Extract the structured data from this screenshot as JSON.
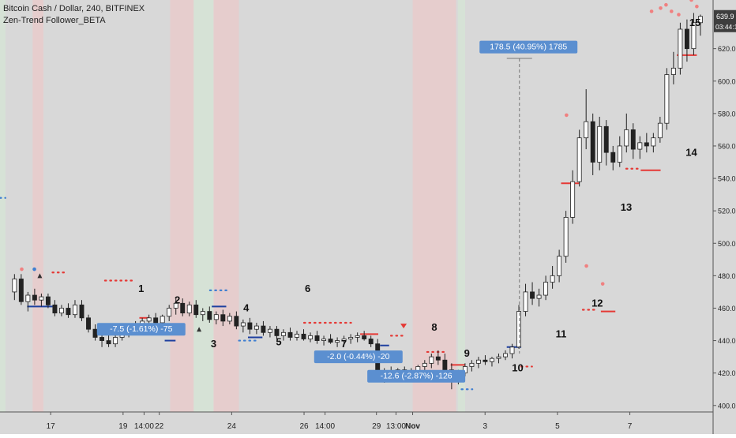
{
  "header": {
    "symbol_line": "Bitcoin Cash / Dollar, 240, BITFINEX",
    "indicator_line": "Zen-Trend Follower_BETA"
  },
  "price_axis": {
    "last_price": "639.9",
    "countdown": "03:44:1",
    "last_price_color": "#3d3d3d"
  },
  "colors": {
    "bull_candle": "#ffffff",
    "bear_candle": "#222222",
    "up_band": "#d6e3d6",
    "down_band": "#e8cccc",
    "red_level": "#e53935",
    "blue_level": "#1e40a0",
    "blue_dots": "#3f7fd1",
    "red_dots": "#e53935",
    "measure_label_bg": "#5b8fd0"
  },
  "annotations": [
    {
      "label": "1",
      "x": 19.5,
      "y": 470
    },
    {
      "label": "2",
      "x": 20.5,
      "y": 463
    },
    {
      "label": "3",
      "x": 21.5,
      "y": 436
    },
    {
      "label": "4",
      "x": 22.4,
      "y": 458
    },
    {
      "label": "5",
      "x": 23.3,
      "y": 437
    },
    {
      "label": "6",
      "x": 24.1,
      "y": 470
    },
    {
      "label": "7",
      "x": 25.1,
      "y": 436
    },
    {
      "label": "8",
      "x": 27.6,
      "y": 446
    },
    {
      "label": "9",
      "x": 28.5,
      "y": 430
    },
    {
      "label": "10",
      "x": 29.9,
      "y": 421
    },
    {
      "label": "11",
      "x": 31.1,
      "y": 442
    },
    {
      "label": "12",
      "x": 32.1,
      "y": 461
    },
    {
      "label": "13",
      "x": 32.9,
      "y": 520
    },
    {
      "label": "14",
      "x": 34.7,
      "y": 554
    },
    {
      "label": "15",
      "x": 34.8,
      "y": 634
    }
  ],
  "measurements": [
    {
      "label": "-7.5 (-1.61%) -75",
      "x": 19.5,
      "y": 447
    },
    {
      "label": "-2.0 (-0.44%) -20",
      "x": 25.5,
      "y": 430
    },
    {
      "label": "-12.6 (-2.87%) -126",
      "x": 27.1,
      "y": 418
    },
    {
      "label": "178.5 (40.95%) 1785",
      "x": 30.2,
      "y": 621
    }
  ],
  "chart_data": {
    "type": "candlestick",
    "title": "Bitcoin Cash / Dollar, 240, BITFINEX",
    "subtitle": "Zen-Trend Follower_BETA",
    "x_tick_labels": [
      {
        "label": "17",
        "x": 17.0
      },
      {
        "label": "19",
        "x": 19.0
      },
      {
        "label": "14:00",
        "x": 19.58
      },
      {
        "label": "22",
        "x": 20.0
      },
      {
        "label": "24",
        "x": 22.0
      },
      {
        "label": "26",
        "x": 24.0
      },
      {
        "label": "14:00",
        "x": 24.58
      },
      {
        "label": "29",
        "x": 26.0
      },
      {
        "label": "13:00",
        "x": 26.54
      },
      {
        "label": "Nov",
        "x": 27.0
      },
      {
        "label": "3",
        "x": 29.0
      },
      {
        "label": "5",
        "x": 31.0
      },
      {
        "label": "7",
        "x": 33.0
      }
    ],
    "x_range": [
      15.6,
      35.3
    ],
    "y_ticks": [
      400.0,
      420.0,
      440.0,
      460.0,
      480.0,
      500.0,
      520.0,
      540.0,
      560.0,
      580.0,
      600.0,
      620.0
    ],
    "ylim": [
      396,
      650
    ],
    "grid": false,
    "bands": [
      {
        "from": 15.6,
        "to": 15.75,
        "trend": "up"
      },
      {
        "from": 16.5,
        "to": 16.8,
        "trend": "down"
      },
      {
        "from": 20.3,
        "to": 20.95,
        "trend": "down"
      },
      {
        "from": 20.95,
        "to": 21.5,
        "trend": "up"
      },
      {
        "from": 21.5,
        "to": 22.2,
        "trend": "down"
      },
      {
        "from": 27.0,
        "to": 28.2,
        "trend": "down"
      },
      {
        "from": 28.25,
        "to": 28.45,
        "trend": "up"
      }
    ],
    "candles": [
      {
        "o": 470,
        "h": 481,
        "l": 465,
        "c": 478
      },
      {
        "o": 478,
        "h": 481,
        "l": 462,
        "c": 464
      },
      {
        "o": 464,
        "h": 470,
        "l": 458,
        "c": 468
      },
      {
        "o": 468,
        "h": 472,
        "l": 462,
        "c": 465
      },
      {
        "o": 465,
        "h": 469,
        "l": 461,
        "c": 467
      },
      {
        "o": 467,
        "h": 469,
        "l": 460,
        "c": 462
      },
      {
        "o": 462,
        "h": 465,
        "l": 455,
        "c": 457
      },
      {
        "o": 457,
        "h": 462,
        "l": 455,
        "c": 460
      },
      {
        "o": 460,
        "h": 463,
        "l": 454,
        "c": 456
      },
      {
        "o": 456,
        "h": 465,
        "l": 454,
        "c": 462
      },
      {
        "o": 462,
        "h": 465,
        "l": 452,
        "c": 454
      },
      {
        "o": 454,
        "h": 456,
        "l": 445,
        "c": 447
      },
      {
        "o": 447,
        "h": 450,
        "l": 440,
        "c": 442
      },
      {
        "o": 442,
        "h": 446,
        "l": 436,
        "c": 440
      },
      {
        "o": 440,
        "h": 444,
        "l": 436,
        "c": 438
      },
      {
        "o": 438,
        "h": 444,
        "l": 436,
        "c": 442
      },
      {
        "o": 442,
        "h": 448,
        "l": 440,
        "c": 445
      },
      {
        "o": 445,
        "h": 450,
        "l": 442,
        "c": 447
      },
      {
        "o": 447,
        "h": 452,
        "l": 445,
        "c": 450
      },
      {
        "o": 450,
        "h": 454,
        "l": 448,
        "c": 452
      },
      {
        "o": 452,
        "h": 456,
        "l": 450,
        "c": 454
      },
      {
        "o": 454,
        "h": 457,
        "l": 450,
        "c": 451
      },
      {
        "o": 451,
        "h": 456,
        "l": 450,
        "c": 455
      },
      {
        "o": 455,
        "h": 462,
        "l": 452,
        "c": 460
      },
      {
        "o": 460,
        "h": 466,
        "l": 456,
        "c": 463
      },
      {
        "o": 463,
        "h": 466,
        "l": 455,
        "c": 457
      },
      {
        "o": 457,
        "h": 464,
        "l": 455,
        "c": 462
      },
      {
        "o": 462,
        "h": 465,
        "l": 454,
        "c": 456
      },
      {
        "o": 456,
        "h": 460,
        "l": 452,
        "c": 458
      },
      {
        "o": 458,
        "h": 461,
        "l": 451,
        "c": 453
      },
      {
        "o": 453,
        "h": 458,
        "l": 450,
        "c": 456
      },
      {
        "o": 456,
        "h": 459,
        "l": 449,
        "c": 452
      },
      {
        "o": 452,
        "h": 457,
        "l": 450,
        "c": 455
      },
      {
        "o": 455,
        "h": 458,
        "l": 447,
        "c": 449
      },
      {
        "o": 449,
        "h": 453,
        "l": 445,
        "c": 451
      },
      {
        "o": 451,
        "h": 454,
        "l": 444,
        "c": 447
      },
      {
        "o": 447,
        "h": 451,
        "l": 444,
        "c": 449
      },
      {
        "o": 449,
        "h": 452,
        "l": 443,
        "c": 445
      },
      {
        "o": 445,
        "h": 449,
        "l": 442,
        "c": 447
      },
      {
        "o": 447,
        "h": 449,
        "l": 441,
        "c": 443
      },
      {
        "o": 443,
        "h": 447,
        "l": 440,
        "c": 445
      },
      {
        "o": 445,
        "h": 448,
        "l": 440,
        "c": 442
      },
      {
        "o": 442,
        "h": 446,
        "l": 440,
        "c": 444
      },
      {
        "o": 444,
        "h": 447,
        "l": 440,
        "c": 441
      },
      {
        "o": 441,
        "h": 445,
        "l": 439,
        "c": 443
      },
      {
        "o": 443,
        "h": 446,
        "l": 438,
        "c": 440
      },
      {
        "o": 440,
        "h": 443,
        "l": 437,
        "c": 441
      },
      {
        "o": 441,
        "h": 444,
        "l": 438,
        "c": 439
      },
      {
        "o": 439,
        "h": 442,
        "l": 436,
        "c": 440
      },
      {
        "o": 440,
        "h": 443,
        "l": 437,
        "c": 441
      },
      {
        "o": 441,
        "h": 444,
        "l": 438,
        "c": 442
      },
      {
        "o": 442,
        "h": 445,
        "l": 439,
        "c": 443
      },
      {
        "o": 443,
        "h": 446,
        "l": 440,
        "c": 441
      },
      {
        "o": 441,
        "h": 443,
        "l": 436,
        "c": 438
      },
      {
        "o": 438,
        "h": 441,
        "l": 416,
        "c": 419
      },
      {
        "o": 419,
        "h": 423,
        "l": 414,
        "c": 421
      },
      {
        "o": 421,
        "h": 424,
        "l": 418,
        "c": 420
      },
      {
        "o": 420,
        "h": 423,
        "l": 418,
        "c": 422
      },
      {
        "o": 422,
        "h": 424,
        "l": 419,
        "c": 421
      },
      {
        "o": 421,
        "h": 423,
        "l": 418,
        "c": 419
      },
      {
        "o": 419,
        "h": 425,
        "l": 417,
        "c": 424
      },
      {
        "o": 424,
        "h": 428,
        "l": 420,
        "c": 426
      },
      {
        "o": 426,
        "h": 432,
        "l": 423,
        "c": 430
      },
      {
        "o": 430,
        "h": 434,
        "l": 425,
        "c": 428
      },
      {
        "o": 428,
        "h": 432,
        "l": 420,
        "c": 422
      },
      {
        "o": 422,
        "h": 426,
        "l": 410,
        "c": 416
      },
      {
        "o": 416,
        "h": 422,
        "l": 413,
        "c": 420
      },
      {
        "o": 420,
        "h": 426,
        "l": 418,
        "c": 424
      },
      {
        "o": 424,
        "h": 428,
        "l": 421,
        "c": 426
      },
      {
        "o": 426,
        "h": 430,
        "l": 423,
        "c": 428
      },
      {
        "o": 428,
        "h": 431,
        "l": 425,
        "c": 427
      },
      {
        "o": 427,
        "h": 430,
        "l": 424,
        "c": 429
      },
      {
        "o": 429,
        "h": 432,
        "l": 426,
        "c": 430
      },
      {
        "o": 430,
        "h": 434,
        "l": 428,
        "c": 432
      },
      {
        "o": 432,
        "h": 438,
        "l": 429,
        "c": 436
      },
      {
        "o": 436,
        "h": 462,
        "l": 435,
        "c": 458
      },
      {
        "o": 458,
        "h": 475,
        "l": 455,
        "c": 470
      },
      {
        "o": 470,
        "h": 476,
        "l": 462,
        "c": 466
      },
      {
        "o": 466,
        "h": 472,
        "l": 461,
        "c": 468
      },
      {
        "o": 468,
        "h": 480,
        "l": 465,
        "c": 476
      },
      {
        "o": 476,
        "h": 486,
        "l": 472,
        "c": 480
      },
      {
        "o": 480,
        "h": 496,
        "l": 476,
        "c": 492
      },
      {
        "o": 492,
        "h": 520,
        "l": 488,
        "c": 516
      },
      {
        "o": 516,
        "h": 545,
        "l": 512,
        "c": 538
      },
      {
        "o": 538,
        "h": 570,
        "l": 535,
        "c": 565
      },
      {
        "o": 565,
        "h": 595,
        "l": 558,
        "c": 575
      },
      {
        "o": 575,
        "h": 580,
        "l": 542,
        "c": 550
      },
      {
        "o": 550,
        "h": 578,
        "l": 545,
        "c": 572
      },
      {
        "o": 572,
        "h": 576,
        "l": 548,
        "c": 556
      },
      {
        "o": 556,
        "h": 560,
        "l": 545,
        "c": 550
      },
      {
        "o": 550,
        "h": 566,
        "l": 547,
        "c": 560
      },
      {
        "o": 560,
        "h": 580,
        "l": 556,
        "c": 570
      },
      {
        "o": 570,
        "h": 574,
        "l": 552,
        "c": 558
      },
      {
        "o": 558,
        "h": 566,
        "l": 552,
        "c": 562
      },
      {
        "o": 562,
        "h": 568,
        "l": 556,
        "c": 560
      },
      {
        "o": 560,
        "h": 568,
        "l": 556,
        "c": 565
      },
      {
        "o": 565,
        "h": 578,
        "l": 562,
        "c": 574
      },
      {
        "o": 574,
        "h": 608,
        "l": 570,
        "c": 604
      },
      {
        "o": 604,
        "h": 618,
        "l": 598,
        "c": 608
      },
      {
        "o": 608,
        "h": 636,
        "l": 604,
        "c": 632
      },
      {
        "o": 632,
        "h": 638,
        "l": 612,
        "c": 620
      },
      {
        "o": 620,
        "h": 642,
        "l": 616,
        "c": 636
      },
      {
        "o": 636,
        "h": 641,
        "l": 628,
        "c": 639.9
      }
    ],
    "levels": [
      {
        "from": 16.35,
        "to": 17.05,
        "y": 461,
        "color": "blue"
      },
      {
        "from": 19.45,
        "to": 19.7,
        "y": 454,
        "color": "red"
      },
      {
        "from": 20.15,
        "to": 20.45,
        "y": 440,
        "color": "blue"
      },
      {
        "from": 21.45,
        "to": 21.85,
        "y": 461,
        "color": "blue"
      },
      {
        "from": 22.45,
        "to": 22.85,
        "y": 442,
        "color": "blue"
      },
      {
        "from": 25.55,
        "to": 26.05,
        "y": 444,
        "color": "red"
      },
      {
        "from": 26.1,
        "to": 26.35,
        "y": 437,
        "color": "blue"
      },
      {
        "from": 28.05,
        "to": 28.45,
        "y": 425,
        "color": "red"
      },
      {
        "from": 29.6,
        "to": 30.0,
        "y": 436,
        "color": "blue"
      },
      {
        "from": 31.1,
        "to": 31.6,
        "y": 537,
        "color": "red"
      },
      {
        "from": 32.2,
        "to": 32.6,
        "y": 458,
        "color": "red"
      },
      {
        "from": 33.3,
        "to": 33.85,
        "y": 545,
        "color": "red"
      },
      {
        "from": 34.3,
        "to": 34.85,
        "y": 616,
        "color": "red"
      }
    ],
    "dot_lines": [
      {
        "from": 15.6,
        "to": 15.75,
        "y": 528,
        "color": "blue"
      },
      {
        "from": 17.05,
        "to": 17.45,
        "y": 482,
        "color": "red"
      },
      {
        "from": 18.5,
        "to": 19.3,
        "y": 477,
        "color": "red"
      },
      {
        "from": 21.4,
        "to": 21.95,
        "y": 471,
        "color": "blue"
      },
      {
        "from": 22.2,
        "to": 22.7,
        "y": 440,
        "color": "blue"
      },
      {
        "from": 24.0,
        "to": 25.3,
        "y": 451,
        "color": "red"
      },
      {
        "from": 26.4,
        "to": 26.75,
        "y": 443,
        "color": "red"
      },
      {
        "from": 27.4,
        "to": 27.95,
        "y": 433,
        "color": "red"
      },
      {
        "from": 28.35,
        "to": 28.65,
        "y": 410,
        "color": "blue"
      },
      {
        "from": 30.0,
        "to": 30.3,
        "y": 424,
        "color": "red"
      },
      {
        "from": 31.7,
        "to": 32.1,
        "y": 459,
        "color": "red"
      },
      {
        "from": 32.9,
        "to": 33.3,
        "y": 546,
        "color": "red"
      }
    ],
    "markers": [
      {
        "x": 16.2,
        "y": 484,
        "kind": "red-dot"
      },
      {
        "x": 16.55,
        "y": 484,
        "kind": "blue-dot"
      },
      {
        "x": 16.7,
        "y": 480,
        "kind": "triangle-up"
      },
      {
        "x": 21.1,
        "y": 447,
        "kind": "triangle-up"
      },
      {
        "x": 26.75,
        "y": 449,
        "kind": "triangle-down"
      },
      {
        "x": 31.25,
        "y": 579,
        "kind": "red-dot"
      },
      {
        "x": 33.6,
        "y": 643,
        "kind": "red-dot"
      },
      {
        "x": 33.85,
        "y": 645,
        "kind": "red-dot"
      },
      {
        "x": 34.0,
        "y": 647,
        "kind": "red-dot"
      },
      {
        "x": 34.15,
        "y": 643,
        "kind": "red-dot"
      },
      {
        "x": 34.35,
        "y": 641,
        "kind": "red-dot"
      },
      {
        "x": 34.7,
        "y": 650,
        "kind": "red-dot"
      },
      {
        "x": 34.85,
        "y": 646,
        "kind": "red-dot"
      },
      {
        "x": 32.25,
        "y": 475,
        "kind": "red-dot"
      },
      {
        "x": 31.8,
        "y": 486,
        "kind": "red-dot"
      }
    ]
  }
}
